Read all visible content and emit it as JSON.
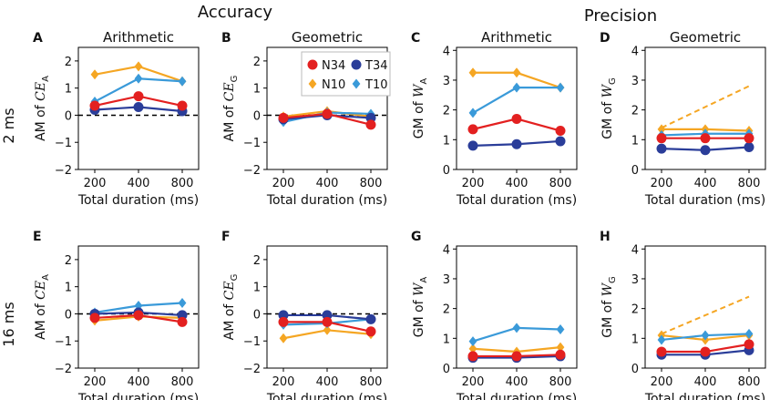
{
  "header": {
    "accuracy": "Accuracy",
    "precision": "Precision"
  },
  "rows": [
    {
      "label": "2 ms"
    },
    {
      "label": "16 ms"
    }
  ],
  "legend": {
    "entries": [
      {
        "name": "N34",
        "color": "#e32020",
        "marker": "circle"
      },
      {
        "name": "T34",
        "color": "#2a3d99",
        "marker": "circle"
      },
      {
        "name": "N10",
        "color": "#f5a623",
        "marker": "diamond"
      },
      {
        "name": "T10",
        "color": "#3a9ad9",
        "marker": "diamond"
      }
    ]
  },
  "chart_data": [
    {
      "panel": "A",
      "type": "line",
      "title": "Arithmetic",
      "xlabel": "Total duration (ms)",
      "ylabel_prefix": "AM of ",
      "ylabel_var": "CE",
      "ylabel_sub": "A",
      "categories": [
        200,
        400,
        800
      ],
      "ylim": [
        -2,
        2.5
      ],
      "yticks": [
        -2,
        -1,
        0,
        1,
        2
      ],
      "reference": {
        "y": 0,
        "style": "dashed",
        "color": "#000000"
      },
      "series": [
        {
          "name": "N34",
          "values": [
            0.35,
            0.7,
            0.35
          ]
        },
        {
          "name": "T34",
          "values": [
            0.2,
            0.3,
            0.15
          ]
        },
        {
          "name": "N10",
          "values": [
            1.5,
            1.8,
            1.25
          ]
        },
        {
          "name": "T10",
          "values": [
            0.5,
            1.35,
            1.25
          ]
        }
      ]
    },
    {
      "panel": "B",
      "type": "line",
      "title": "Geometric",
      "xlabel": "Total duration (ms)",
      "ylabel_prefix": "AM of ",
      "ylabel_var": "CE",
      "ylabel_sub": "G",
      "categories": [
        200,
        400,
        800
      ],
      "ylim": [
        -2,
        2.5
      ],
      "yticks": [
        -2,
        -1,
        0,
        1,
        2
      ],
      "reference": {
        "y": 0,
        "style": "dashed",
        "color": "#000000"
      },
      "series": [
        {
          "name": "N34",
          "values": [
            -0.1,
            0.05,
            -0.35
          ]
        },
        {
          "name": "T34",
          "values": [
            -0.15,
            0.0,
            -0.1
          ]
        },
        {
          "name": "N10",
          "values": [
            -0.05,
            0.15,
            -0.05
          ]
        },
        {
          "name": "T10",
          "values": [
            -0.25,
            0.1,
            0.05
          ]
        }
      ]
    },
    {
      "panel": "C",
      "type": "line",
      "title": "Arithmetic",
      "xlabel": "Total duration (ms)",
      "ylabel_prefix": "GM of ",
      "ylabel_var": "W",
      "ylabel_sub": "A",
      "categories": [
        200,
        400,
        800
      ],
      "ylim": [
        0,
        4.1
      ],
      "yticks": [
        0,
        1,
        2,
        3,
        4
      ],
      "series": [
        {
          "name": "N34",
          "values": [
            1.35,
            1.7,
            1.3
          ]
        },
        {
          "name": "T34",
          "values": [
            0.8,
            0.85,
            0.95
          ]
        },
        {
          "name": "N10",
          "values": [
            3.25,
            3.25,
            2.75
          ]
        },
        {
          "name": "T10",
          "values": [
            1.9,
            2.75,
            2.75
          ]
        }
      ]
    },
    {
      "panel": "D",
      "type": "line",
      "title": "Geometric",
      "xlabel": "Total duration (ms)",
      "ylabel_prefix": "GM of ",
      "ylabel_var": "W",
      "ylabel_sub": "G",
      "categories": [
        200,
        400,
        800
      ],
      "ylim": [
        0,
        4.1
      ],
      "yticks": [
        0,
        1,
        2,
        3,
        4
      ],
      "reference": {
        "x": [
          200,
          800
        ],
        "y": [
          1.4,
          2.8
        ],
        "style": "dashed",
        "color": "#f5a623"
      },
      "series": [
        {
          "name": "N34",
          "values": [
            1.05,
            1.05,
            1.05
          ]
        },
        {
          "name": "T34",
          "values": [
            0.7,
            0.65,
            0.75
          ]
        },
        {
          "name": "N10",
          "values": [
            1.35,
            1.35,
            1.3
          ]
        },
        {
          "name": "T10",
          "values": [
            1.15,
            1.2,
            1.2
          ]
        }
      ]
    },
    {
      "panel": "E",
      "type": "line",
      "title": "",
      "xlabel": "Total duration (ms)",
      "ylabel_prefix": "AM of ",
      "ylabel_var": "CE",
      "ylabel_sub": "A",
      "categories": [
        200,
        400,
        800
      ],
      "ylim": [
        -2,
        2.5
      ],
      "yticks": [
        -2,
        -1,
        0,
        1,
        2
      ],
      "reference": {
        "y": 0,
        "style": "dashed",
        "color": "#000000"
      },
      "series": [
        {
          "name": "N34",
          "values": [
            -0.15,
            -0.05,
            -0.3
          ]
        },
        {
          "name": "T34",
          "values": [
            0.0,
            0.05,
            -0.05
          ]
        },
        {
          "name": "N10",
          "values": [
            -0.25,
            -0.1,
            -0.15
          ]
        },
        {
          "name": "T10",
          "values": [
            0.05,
            0.3,
            0.4
          ]
        }
      ]
    },
    {
      "panel": "F",
      "type": "line",
      "title": "",
      "xlabel": "Total duration (ms)",
      "ylabel_prefix": "AM of ",
      "ylabel_var": "CE",
      "ylabel_sub": "G",
      "categories": [
        200,
        400,
        800
      ],
      "ylim": [
        -2,
        2.5
      ],
      "yticks": [
        -2,
        -1,
        0,
        1,
        2
      ],
      "reference": {
        "y": 0,
        "style": "dashed",
        "color": "#000000"
      },
      "series": [
        {
          "name": "N34",
          "values": [
            -0.3,
            -0.3,
            -0.65
          ]
        },
        {
          "name": "T34",
          "values": [
            -0.05,
            -0.05,
            -0.2
          ]
        },
        {
          "name": "N10",
          "values": [
            -0.9,
            -0.6,
            -0.75
          ]
        },
        {
          "name": "T10",
          "values": [
            -0.4,
            -0.35,
            -0.2
          ]
        }
      ]
    },
    {
      "panel": "G",
      "type": "line",
      "title": "",
      "xlabel": "Total duration (ms)",
      "ylabel_prefix": "GM of ",
      "ylabel_var": "W",
      "ylabel_sub": "A",
      "categories": [
        200,
        400,
        800
      ],
      "ylim": [
        0,
        4.1
      ],
      "yticks": [
        0,
        1,
        2,
        3,
        4
      ],
      "series": [
        {
          "name": "N34",
          "values": [
            0.4,
            0.4,
            0.45
          ]
        },
        {
          "name": "T34",
          "values": [
            0.35,
            0.35,
            0.4
          ]
        },
        {
          "name": "N10",
          "values": [
            0.65,
            0.55,
            0.7
          ]
        },
        {
          "name": "T10",
          "values": [
            0.9,
            1.35,
            1.3
          ]
        }
      ]
    },
    {
      "panel": "H",
      "type": "line",
      "title": "",
      "xlabel": "Total duration (ms)",
      "ylabel_prefix": "GM of ",
      "ylabel_var": "W",
      "ylabel_sub": "G",
      "categories": [
        200,
        400,
        800
      ],
      "ylim": [
        0,
        4.1
      ],
      "yticks": [
        0,
        1,
        2,
        3,
        4
      ],
      "reference": {
        "x": [
          200,
          800
        ],
        "y": [
          1.15,
          2.4
        ],
        "style": "dashed",
        "color": "#f5a623"
      },
      "series": [
        {
          "name": "N34",
          "values": [
            0.55,
            0.55,
            0.8
          ]
        },
        {
          "name": "T34",
          "values": [
            0.45,
            0.45,
            0.6
          ]
        },
        {
          "name": "N10",
          "values": [
            1.1,
            0.95,
            1.1
          ]
        },
        {
          "name": "T10",
          "values": [
            0.95,
            1.1,
            1.15
          ]
        }
      ]
    }
  ]
}
